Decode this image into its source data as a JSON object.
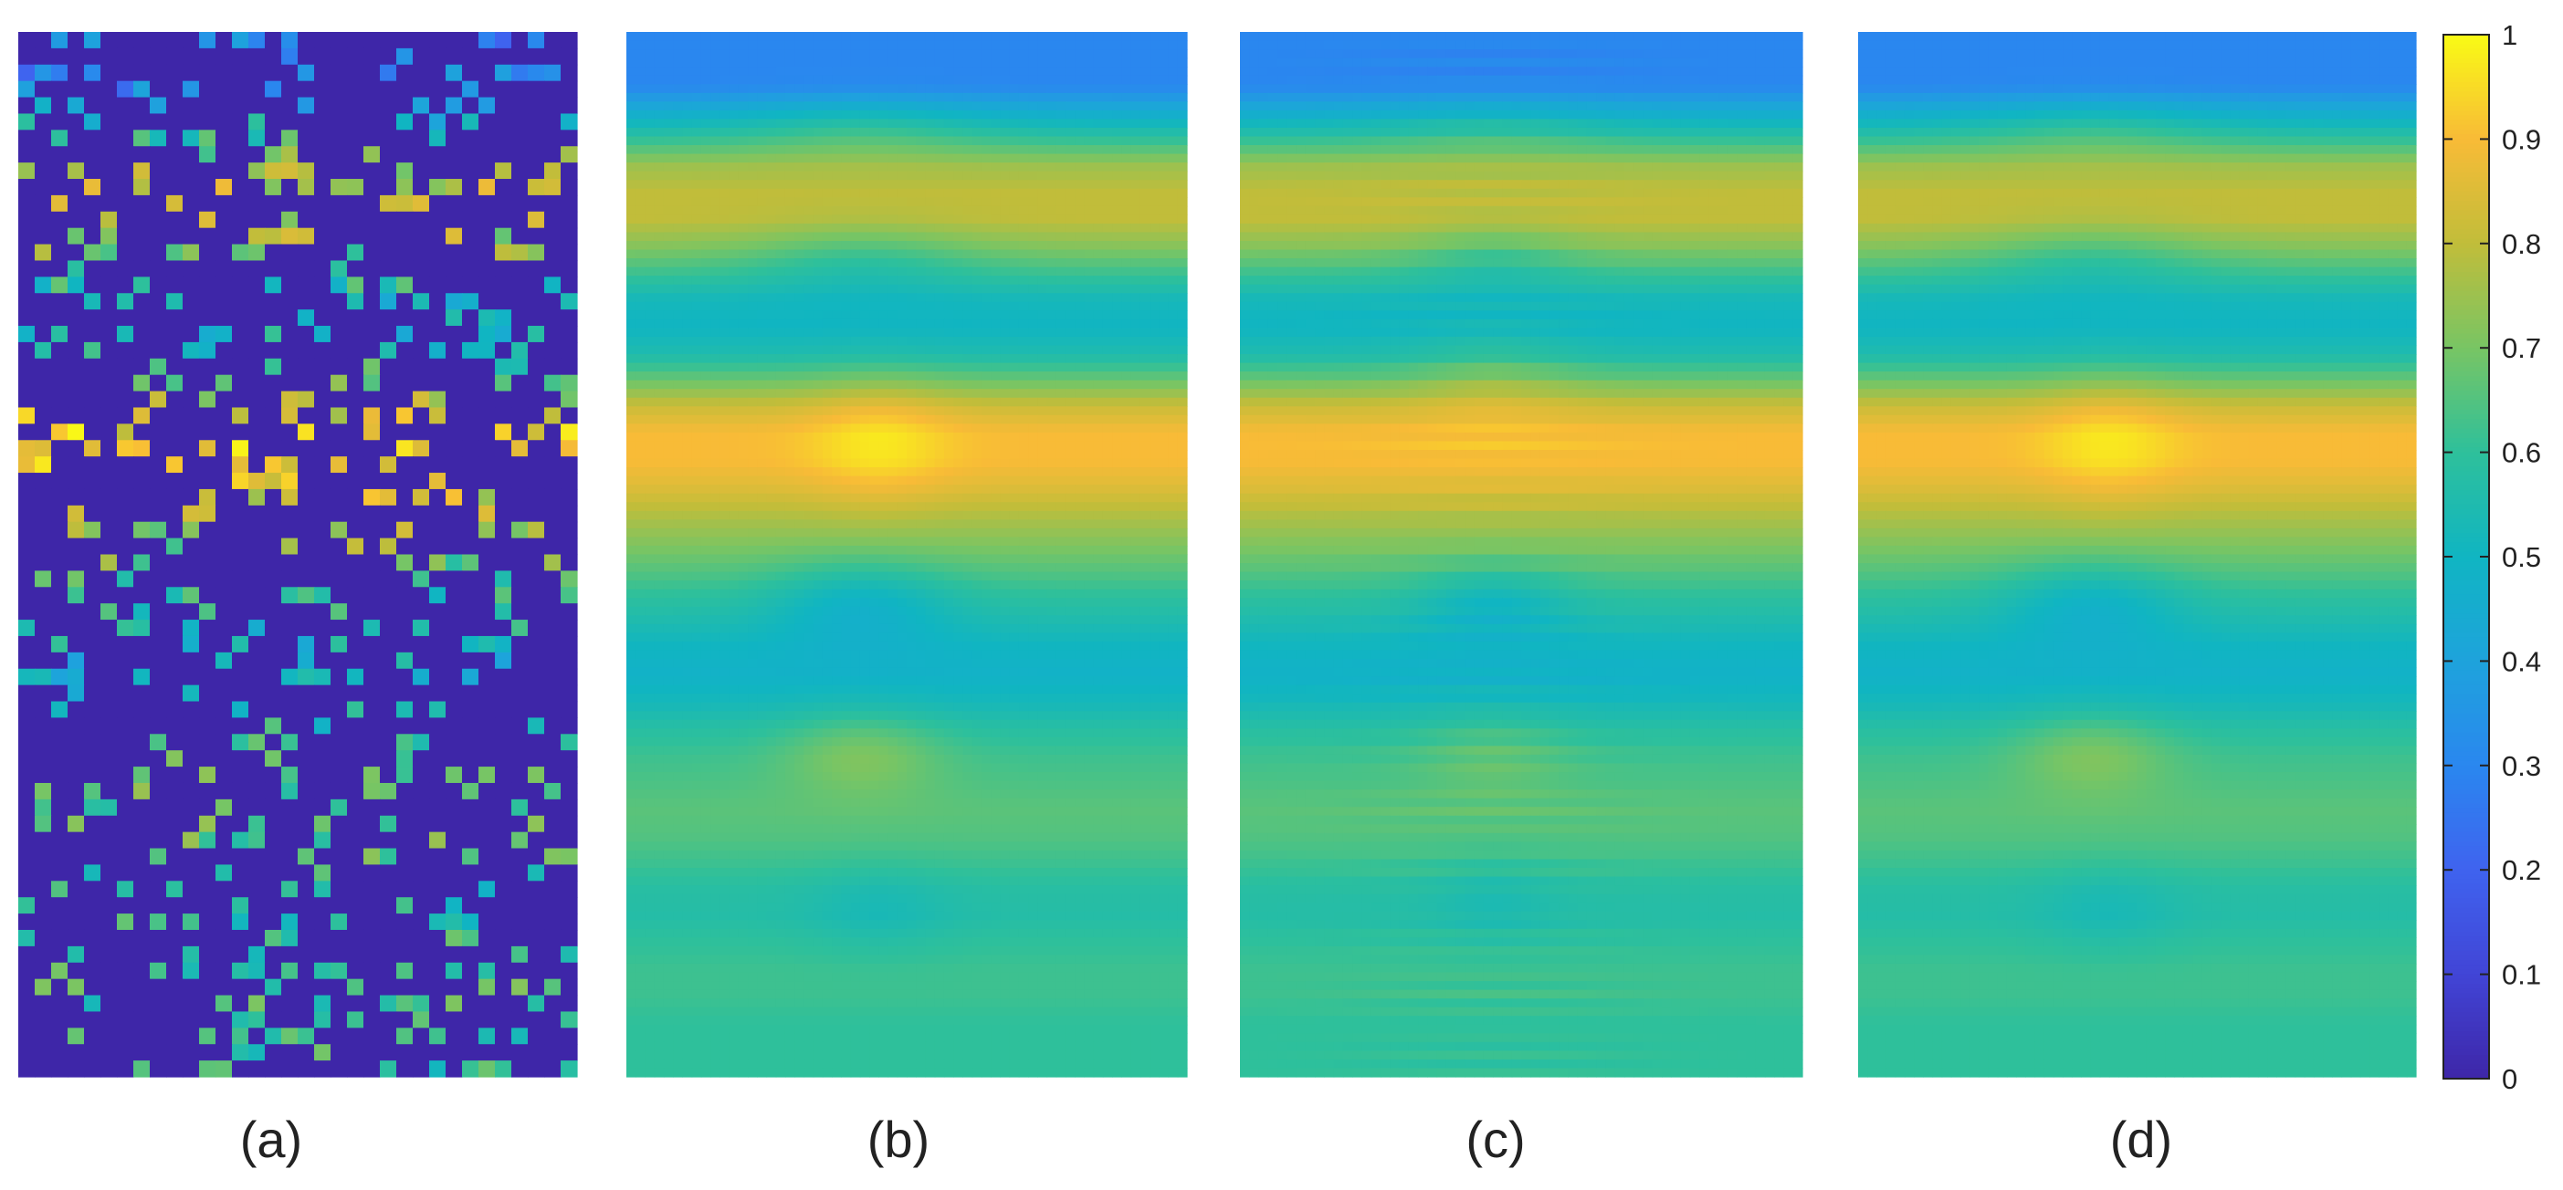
{
  "chart_data": [
    {
      "type": "heatmap",
      "panel_label": "(a)",
      "variant": "sparse",
      "seed": 7,
      "rows": 64,
      "cols": 34,
      "fill_probability": 0.2,
      "empty_value": 0.0,
      "row_profile": [
        0.3,
        0.3,
        0.3,
        0.45,
        0.6,
        0.75,
        0.8,
        0.8,
        0.72,
        0.62,
        0.52,
        0.5,
        0.55,
        0.68,
        0.82,
        0.9,
        0.9,
        0.85,
        0.78,
        0.72,
        0.66,
        0.6,
        0.55,
        0.5,
        0.48,
        0.52,
        0.58,
        0.62,
        0.64,
        0.66,
        0.65,
        0.62,
        0.58,
        0.57,
        0.6,
        0.62,
        0.62,
        0.6,
        0.6,
        0.6
      ]
    },
    {
      "type": "heatmap",
      "panel_label": "(b)",
      "variant": "smooth",
      "rows": 120,
      "cols": 60,
      "row_profile": [
        0.3,
        0.3,
        0.3,
        0.45,
        0.6,
        0.75,
        0.8,
        0.8,
        0.72,
        0.62,
        0.52,
        0.5,
        0.55,
        0.68,
        0.82,
        0.9,
        0.9,
        0.85,
        0.78,
        0.72,
        0.66,
        0.6,
        0.55,
        0.5,
        0.48,
        0.52,
        0.58,
        0.62,
        0.64,
        0.66,
        0.65,
        0.62,
        0.58,
        0.57,
        0.6,
        0.62,
        0.62,
        0.6,
        0.6,
        0.6
      ],
      "blobs": [
        {
          "x": 0.42,
          "y": 0.09,
          "amp": 0.06,
          "sx": 0.22,
          "sy": 0.03
        },
        {
          "x": 0.42,
          "y": 0.215,
          "amp": -0.07,
          "sx": 0.2,
          "sy": 0.035
        },
        {
          "x": 0.45,
          "y": 0.39,
          "amp": 0.07,
          "sx": 0.12,
          "sy": 0.06
        },
        {
          "x": 0.42,
          "y": 0.545,
          "amp": -0.1,
          "sx": 0.16,
          "sy": 0.04
        },
        {
          "x": 0.42,
          "y": 0.69,
          "amp": 0.09,
          "sx": 0.14,
          "sy": 0.04
        },
        {
          "x": 0.45,
          "y": 0.84,
          "amp": -0.04,
          "sx": 0.12,
          "sy": 0.04
        }
      ],
      "stripes": 0
    },
    {
      "type": "heatmap",
      "panel_label": "(c)",
      "variant": "smooth",
      "rows": 120,
      "cols": 60,
      "row_profile": [
        0.3,
        0.3,
        0.3,
        0.45,
        0.6,
        0.75,
        0.8,
        0.8,
        0.72,
        0.62,
        0.52,
        0.5,
        0.55,
        0.68,
        0.82,
        0.9,
        0.9,
        0.85,
        0.78,
        0.72,
        0.66,
        0.6,
        0.55,
        0.5,
        0.48,
        0.52,
        0.58,
        0.62,
        0.64,
        0.66,
        0.65,
        0.62,
        0.58,
        0.57,
        0.6,
        0.62,
        0.62,
        0.6,
        0.6,
        0.6
      ],
      "blobs": [
        {
          "x": 0.45,
          "y": 0.09,
          "amp": 0.04,
          "sx": 0.2,
          "sy": 0.03
        },
        {
          "x": 0.45,
          "y": 0.215,
          "amp": -0.06,
          "sx": 0.14,
          "sy": 0.035
        },
        {
          "x": 0.45,
          "y": 0.33,
          "amp": 0.05,
          "sx": 0.14,
          "sy": 0.05
        },
        {
          "x": 0.45,
          "y": 0.545,
          "amp": -0.08,
          "sx": 0.13,
          "sy": 0.035
        },
        {
          "x": 0.45,
          "y": 0.69,
          "amp": 0.05,
          "sx": 0.13,
          "sy": 0.04
        },
        {
          "x": 0.45,
          "y": 0.83,
          "amp": -0.03,
          "sx": 0.1,
          "sy": 0.04
        }
      ],
      "stripes": 0.018
    },
    {
      "type": "heatmap",
      "panel_label": "(d)",
      "variant": "smooth",
      "rows": 120,
      "cols": 60,
      "row_profile": [
        0.3,
        0.3,
        0.3,
        0.45,
        0.6,
        0.75,
        0.8,
        0.8,
        0.72,
        0.62,
        0.52,
        0.5,
        0.55,
        0.68,
        0.82,
        0.9,
        0.9,
        0.85,
        0.78,
        0.72,
        0.66,
        0.6,
        0.55,
        0.5,
        0.48,
        0.52,
        0.58,
        0.62,
        0.64,
        0.66,
        0.65,
        0.62,
        0.58,
        0.57,
        0.6,
        0.62,
        0.62,
        0.6,
        0.6,
        0.6
      ],
      "blobs": [
        {
          "x": 0.42,
          "y": 0.09,
          "amp": 0.06,
          "sx": 0.22,
          "sy": 0.03
        },
        {
          "x": 0.42,
          "y": 0.215,
          "amp": -0.07,
          "sx": 0.2,
          "sy": 0.035
        },
        {
          "x": 0.45,
          "y": 0.39,
          "amp": 0.07,
          "sx": 0.12,
          "sy": 0.06
        },
        {
          "x": 0.42,
          "y": 0.545,
          "amp": -0.1,
          "sx": 0.16,
          "sy": 0.04
        },
        {
          "x": 0.42,
          "y": 0.69,
          "amp": 0.09,
          "sx": 0.14,
          "sy": 0.04
        },
        {
          "x": 0.45,
          "y": 0.84,
          "amp": -0.04,
          "sx": 0.12,
          "sy": 0.04
        }
      ],
      "stripes": 0
    }
  ],
  "colorbar": {
    "min": 0,
    "max": 1,
    "ticks": [
      0,
      0.1,
      0.2,
      0.3,
      0.4,
      0.5,
      0.6,
      0.7,
      0.8,
      0.9,
      1
    ],
    "tick_labels": [
      "0",
      "0.1",
      "0.2",
      "0.3",
      "0.4",
      "0.5",
      "0.6",
      "0.7",
      "0.8",
      "0.9",
      "1"
    ],
    "colormap": "parula",
    "colormap_stops": [
      "#3e26a8",
      "#4145d6",
      "#3f63ef",
      "#2a87ef",
      "#1ea3dc",
      "#10b5c2",
      "#2ec09b",
      "#78c564",
      "#c1bd3a",
      "#f8bb37",
      "#f9fb15"
    ]
  }
}
